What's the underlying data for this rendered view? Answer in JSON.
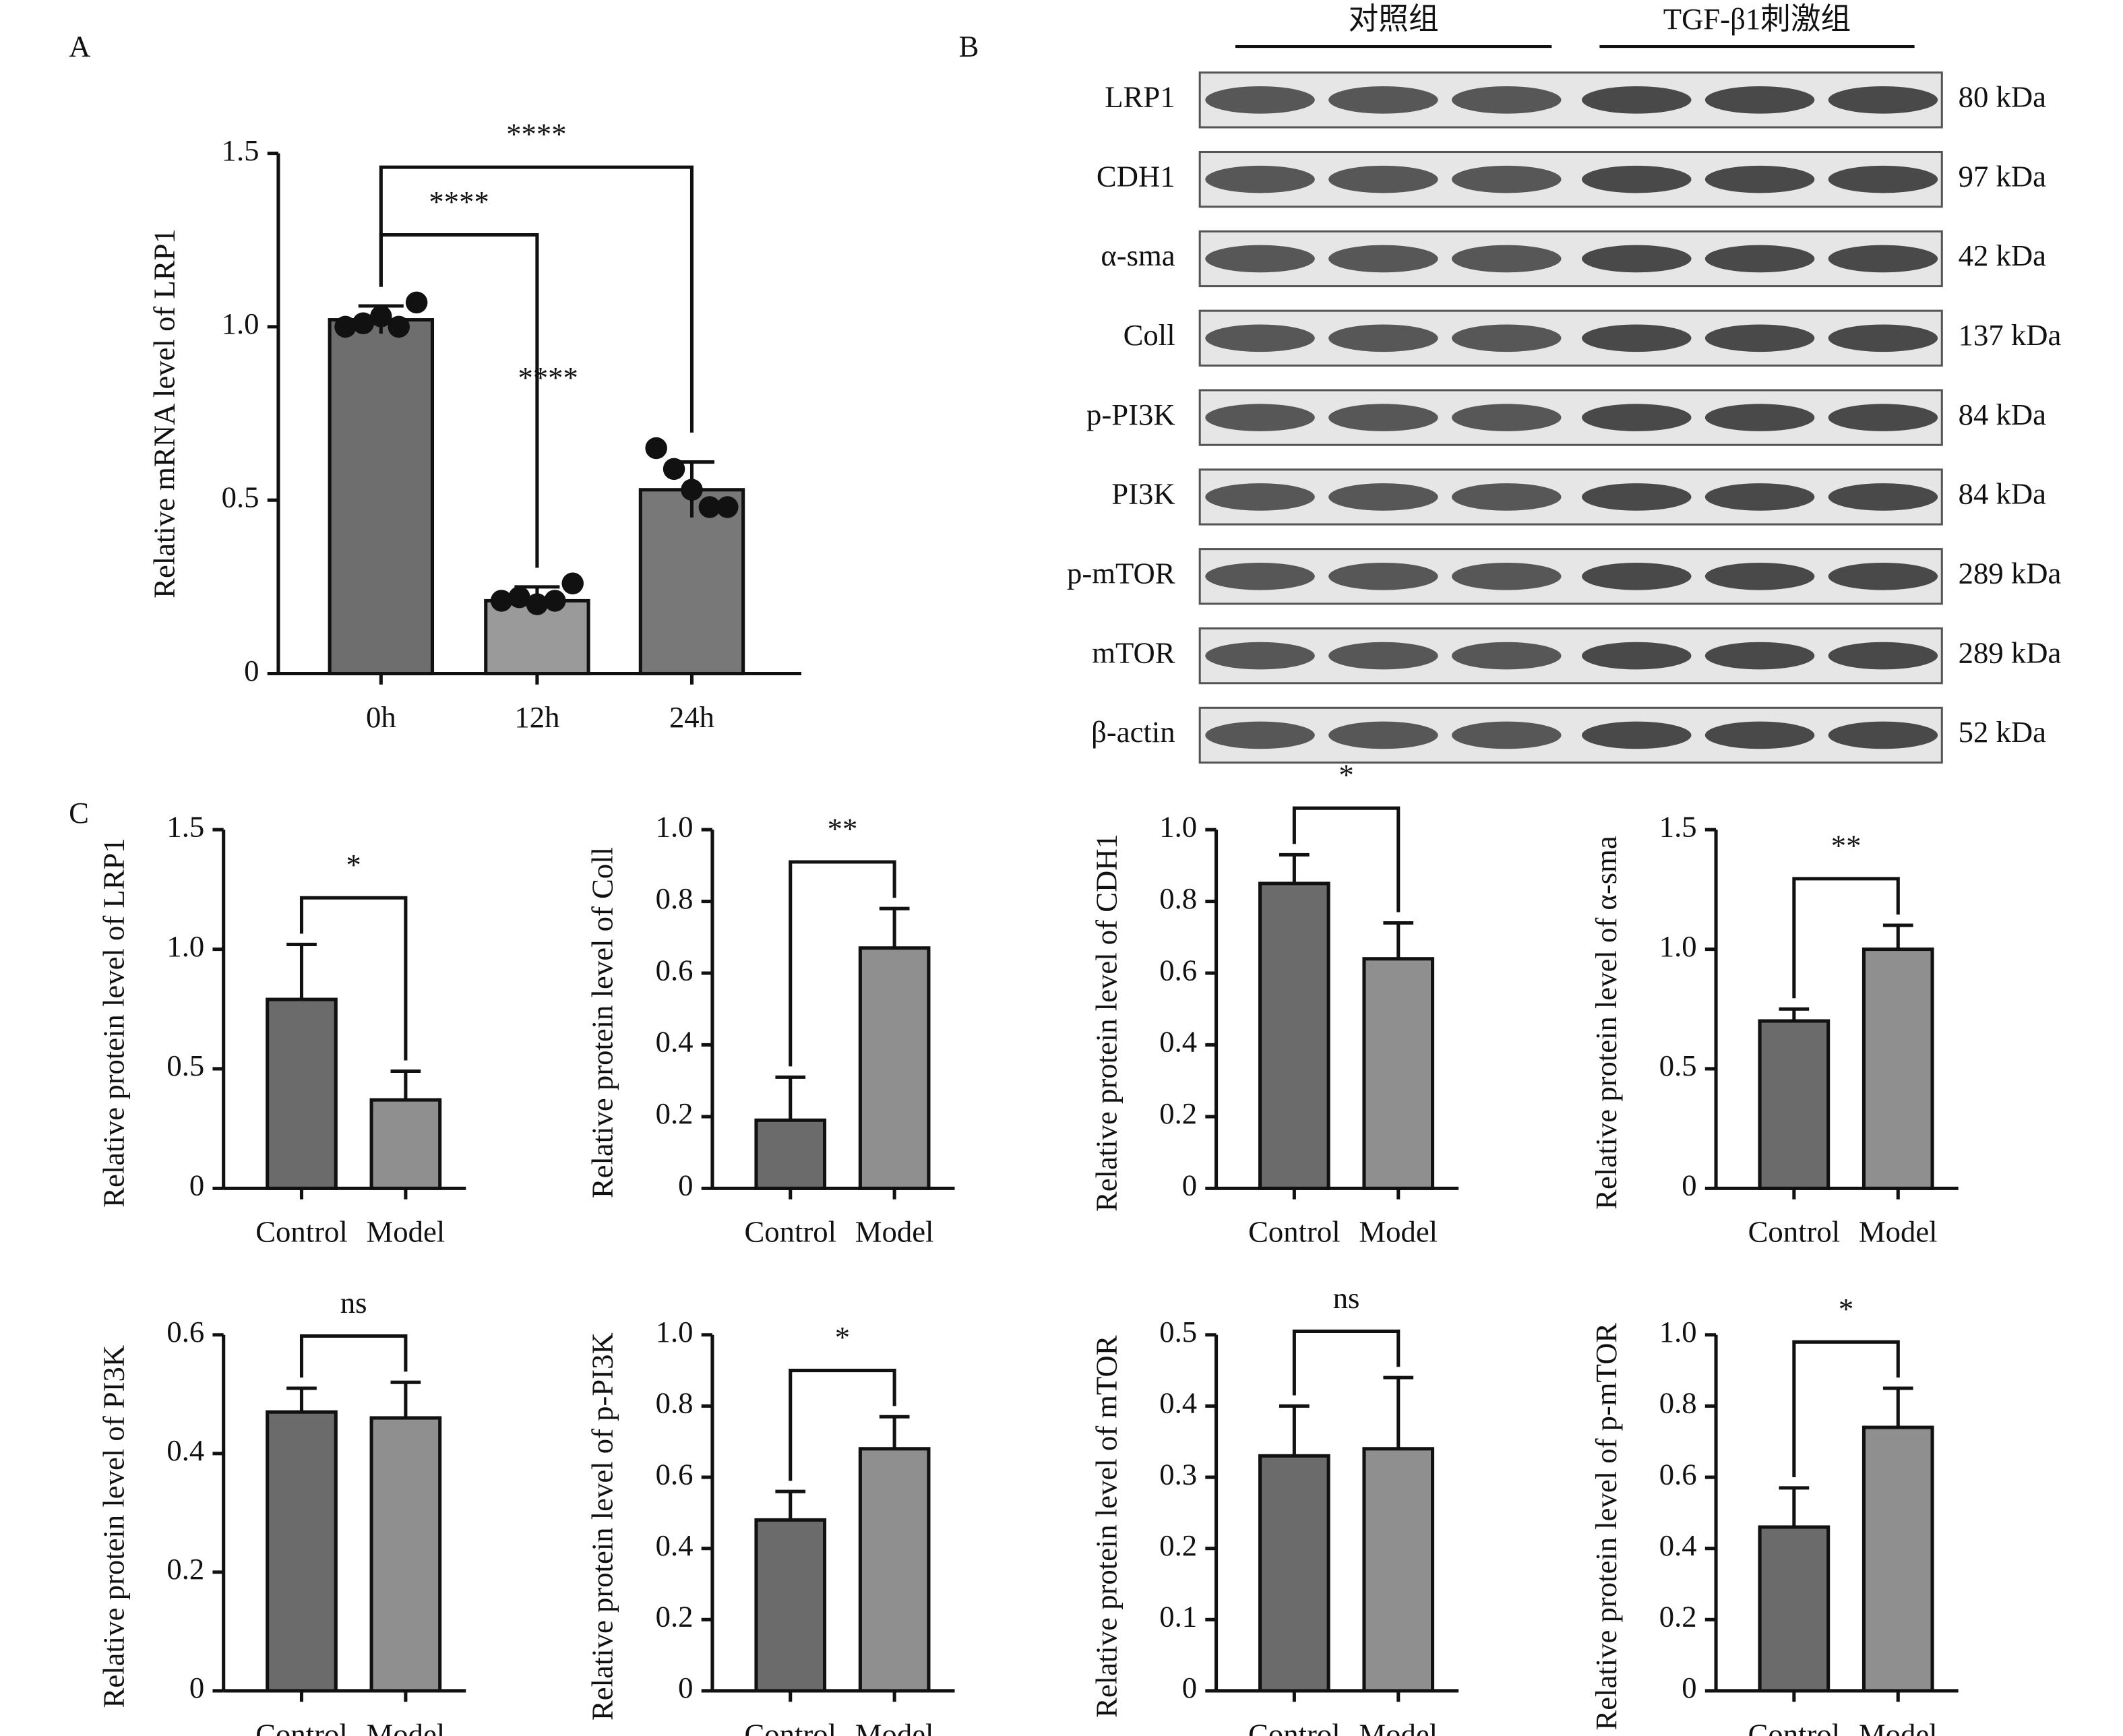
{
  "chart_data": [
    {
      "type": "bar",
      "label": "A",
      "ylabel": "Relative mRNA level of LRP1",
      "categories": [
        "0h",
        "12h",
        "24h"
      ],
      "values": [
        1.02,
        0.21,
        0.53
      ],
      "errors": [
        0.04,
        0.04,
        0.08
      ],
      "points": [
        [
          1.0,
          1.01,
          1.03,
          1.0,
          1.07
        ],
        [
          0.21,
          0.22,
          0.2,
          0.21,
          0.26
        ],
        [
          0.65,
          0.59,
          0.53,
          0.48,
          0.48
        ]
      ],
      "colors": [
        "#6e6e6e",
        "#9a9a9a",
        "#787878"
      ],
      "ylim": [
        0,
        1.5
      ],
      "yticks": [
        0,
        0.5,
        {
          "value": 1,
          "label": "1.0"
        },
        1.5
      ],
      "comparisons": [
        {
          "label": "****",
          "from": "0h",
          "to": "12h"
        },
        {
          "label": "****",
          "from": "0h",
          "to": "24h"
        },
        {
          "label": "****",
          "from": "12h",
          "to": "24h",
          "bracket": false
        }
      ]
    },
    {
      "type": "bar",
      "label": "C",
      "ylabel": "Relative protein level of LRP1",
      "categories": [
        "Control",
        "Model"
      ],
      "values": [
        0.79,
        0.37
      ],
      "errors": [
        0.23,
        0.12
      ],
      "colors": [
        "#6b6b6b",
        "#8f8f8f"
      ],
      "ylim": [
        0,
        1.5
      ],
      "yticks": [
        0,
        0.5,
        {
          "value": 1,
          "label": "1.0"
        },
        1.5
      ],
      "comparisons": [
        {
          "label": "*",
          "from": "Control",
          "to": "Model"
        }
      ]
    },
    {
      "type": "bar",
      "ylabel": "Relative protein level of Coll",
      "categories": [
        "Control",
        "Model"
      ],
      "values": [
        0.19,
        0.67
      ],
      "errors": [
        0.12,
        0.11
      ],
      "colors": [
        "#6b6b6b",
        "#8f8f8f"
      ],
      "ylim": [
        0,
        1
      ],
      "yticks": [
        0,
        0.2,
        0.4,
        0.6,
        0.8,
        {
          "value": 1,
          "label": "1.0"
        }
      ],
      "comparisons": [
        {
          "label": "**",
          "from": "Control",
          "to": "Model"
        }
      ]
    },
    {
      "type": "bar",
      "ylabel": "Relative protein level of CDH1",
      "categories": [
        "Control",
        "Model"
      ],
      "values": [
        0.85,
        0.64
      ],
      "errors": [
        0.08,
        0.1
      ],
      "colors": [
        "#6b6b6b",
        "#8f8f8f"
      ],
      "ylim": [
        0,
        1
      ],
      "yticks": [
        0,
        0.2,
        0.4,
        0.6,
        0.8,
        {
          "value": 1,
          "label": "1.0"
        }
      ],
      "comparisons": [
        {
          "label": "*",
          "from": "Control",
          "to": "Model"
        }
      ]
    },
    {
      "type": "bar",
      "ylabel": "Relative protein level of α-sma",
      "categories": [
        "Control",
        "Model"
      ],
      "values": [
        0.7,
        1.0
      ],
      "errors": [
        0.05,
        0.1
      ],
      "colors": [
        "#6b6b6b",
        "#8f8f8f"
      ],
      "ylim": [
        0,
        1.5
      ],
      "yticks": [
        0,
        0.5,
        {
          "value": 1,
          "label": "1.0"
        },
        1.5
      ],
      "comparisons": [
        {
          "label": "**",
          "from": "Control",
          "to": "Model"
        }
      ]
    },
    {
      "type": "bar",
      "ylabel": "Relative protein level of PI3K",
      "categories": [
        "Control",
        "Model"
      ],
      "values": [
        0.47,
        0.46
      ],
      "errors": [
        0.04,
        0.06
      ],
      "colors": [
        "#6b6b6b",
        "#8f8f8f"
      ],
      "ylim": [
        0,
        0.6
      ],
      "yticks": [
        0,
        0.2,
        0.4,
        0.6
      ],
      "comparisons": [
        {
          "label": "ns",
          "from": "Control",
          "to": "Model"
        }
      ]
    },
    {
      "type": "bar",
      "ylabel": "Relative protein level of p-PI3K",
      "categories": [
        "Control",
        "Model"
      ],
      "values": [
        0.48,
        0.68
      ],
      "errors": [
        0.08,
        0.09
      ],
      "colors": [
        "#6b6b6b",
        "#8f8f8f"
      ],
      "ylim": [
        0,
        1
      ],
      "yticks": [
        0,
        0.2,
        0.4,
        0.6,
        0.8,
        {
          "value": 1,
          "label": "1.0"
        }
      ],
      "comparisons": [
        {
          "label": "*",
          "from": "Control",
          "to": "Model"
        }
      ]
    },
    {
      "type": "bar",
      "ylabel": "Relative protein level of mTOR",
      "categories": [
        "Control",
        "Model"
      ],
      "values": [
        0.33,
        0.34
      ],
      "errors": [
        0.07,
        0.1
      ],
      "colors": [
        "#6b6b6b",
        "#8f8f8f"
      ],
      "ylim": [
        0,
        0.5
      ],
      "yticks": [
        0,
        0.1,
        0.2,
        0.3,
        0.4,
        0.5
      ],
      "comparisons": [
        {
          "label": "ns",
          "from": "Control",
          "to": "Model"
        }
      ]
    },
    {
      "type": "bar",
      "ylabel": "Relative protein level of p-mTOR",
      "categories": [
        "Control",
        "Model"
      ],
      "values": [
        0.46,
        0.74
      ],
      "errors": [
        0.11,
        0.11
      ],
      "colors": [
        "#6b6b6b",
        "#8f8f8f"
      ],
      "ylim": [
        0,
        1
      ],
      "yticks": [
        0,
        0.2,
        0.4,
        0.6,
        0.8,
        {
          "value": 1,
          "label": "1.0"
        }
      ],
      "comparisons": [
        {
          "label": "*",
          "from": "Control",
          "to": "Model"
        }
      ]
    }
  ],
  "blot": {
    "label": "B",
    "groups": [
      "对照组",
      "TGF-β1刺激组"
    ],
    "rows": [
      {
        "protein": "LRP1",
        "size": "80 kDa"
      },
      {
        "protein": "CDH1",
        "size": "97 kDa"
      },
      {
        "protein": "α-sma",
        "size": "42 kDa"
      },
      {
        "protein": "Coll",
        "size": "137 kDa"
      },
      {
        "protein": "p-PI3K",
        "size": "84 kDa"
      },
      {
        "protein": "PI3K",
        "size": "84 kDa"
      },
      {
        "protein": "p-mTOR",
        "size": "289 kDa"
      },
      {
        "protein": "mTOR",
        "size": "289 kDa"
      },
      {
        "protein": "β-actin",
        "size": "52 kDa"
      }
    ]
  }
}
